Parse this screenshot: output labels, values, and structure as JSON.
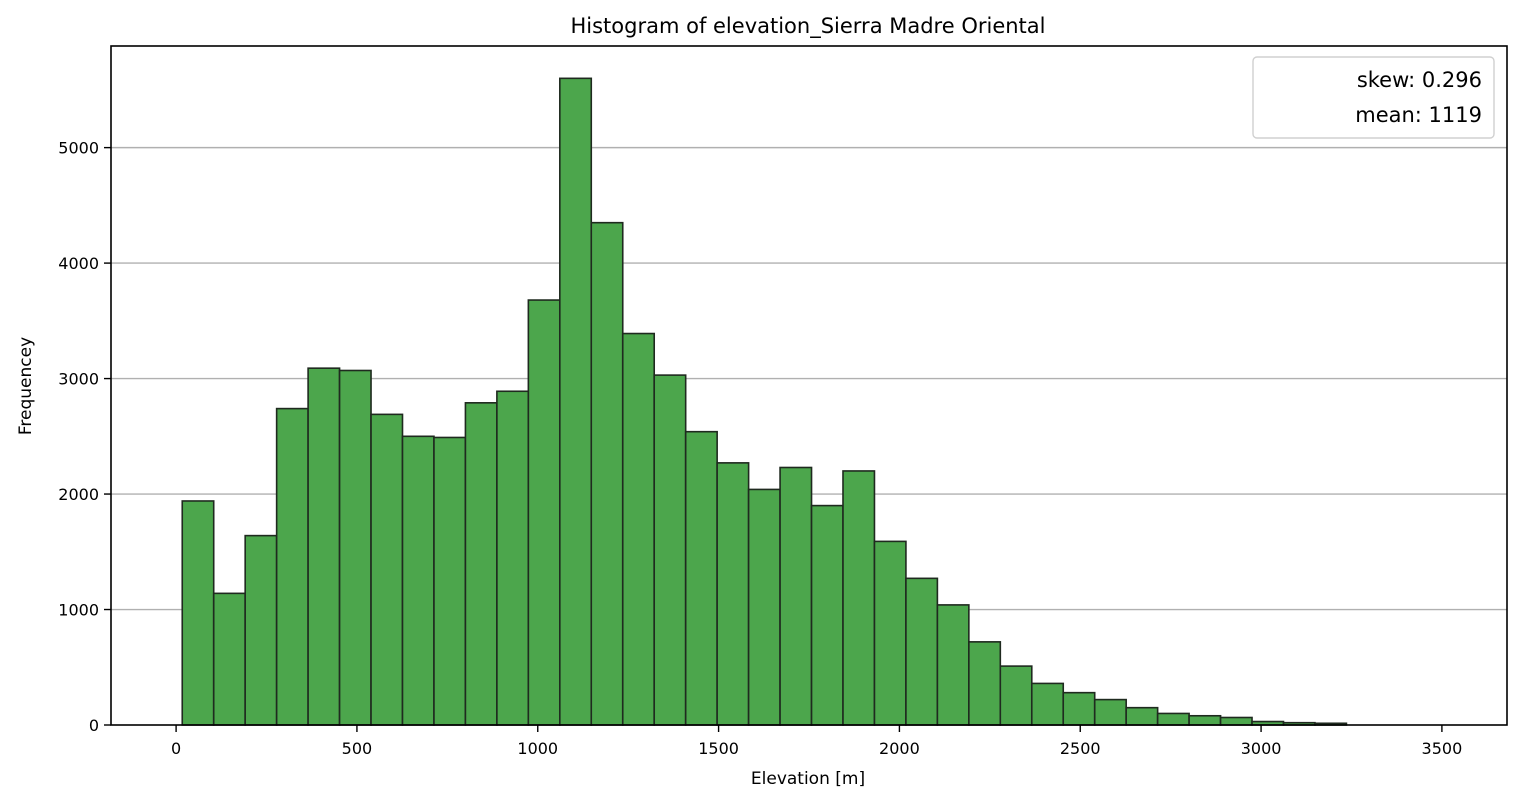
{
  "chart_data": {
    "type": "bar",
    "title": "Histogram of elevation_Sierra Madre Oriental",
    "xlabel": "Elevation [m]",
    "ylabel": "Frequencey",
    "xlim": [
      -180,
      3680
    ],
    "ylim": [
      0,
      5880
    ],
    "xticks": [
      0,
      500,
      1000,
      1500,
      2000,
      2500,
      3000,
      3500
    ],
    "yticks": [
      0,
      1000,
      2000,
      3000,
      4000,
      5000
    ],
    "grid": "horizontal",
    "legend_placement": "top-right",
    "legend": [
      "skew: 0.296",
      "mean: 1119"
    ],
    "bar_color": "#4ca64c",
    "edge_color": "#1f2a1f",
    "bin_start": 17,
    "bin_width": 87,
    "values": [
      1940,
      1140,
      1640,
      2740,
      3090,
      3070,
      2690,
      2500,
      2490,
      2790,
      2890,
      3680,
      5600,
      4350,
      3390,
      3030,
      2540,
      2270,
      2040,
      2230,
      1900,
      2200,
      1590,
      1270,
      1040,
      720,
      510,
      360,
      280,
      220,
      150,
      100,
      80,
      65,
      30,
      20,
      15
    ]
  }
}
